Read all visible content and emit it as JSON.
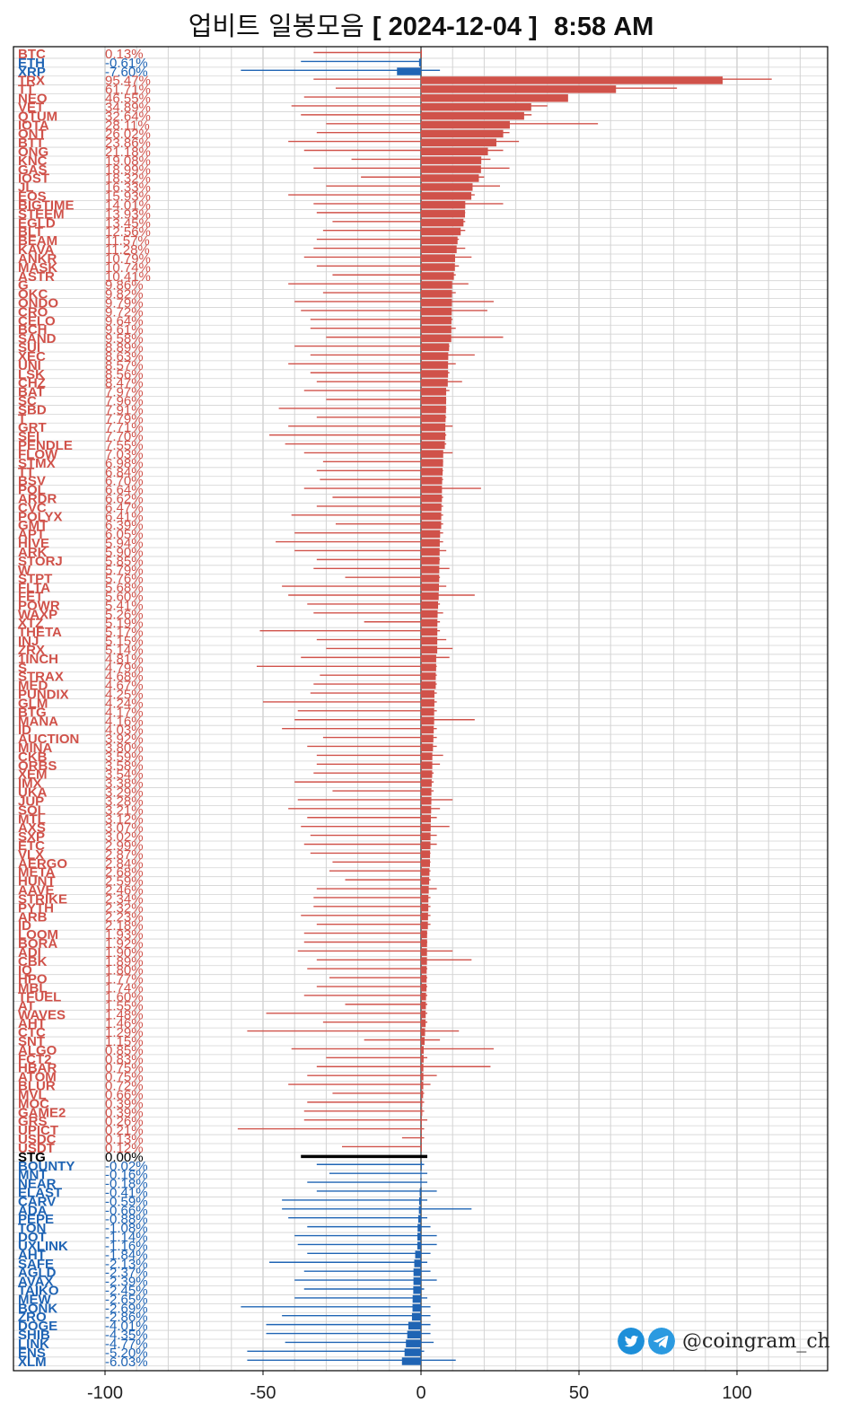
{
  "title": {
    "prefix": "업비트 일봉모음",
    "date": "[ 2024-12-04 ]",
    "time": "8:58 AM"
  },
  "brand": {
    "handle": "@coingram_ch",
    "icons": [
      "twitter-icon",
      "telegram-icon"
    ]
  },
  "colors": {
    "up": "#d0524a",
    "down": "#1f64b4",
    "flat": "#000000",
    "grid": "#d3d3d3",
    "axis": "#000000"
  },
  "chart_data": {
    "type": "bar",
    "orientation": "horizontal",
    "xlim": [
      -100,
      135
    ],
    "x_ticks": [
      -100,
      -50,
      0,
      50,
      100
    ],
    "grid": true,
    "body_label": "change %",
    "wick_label": "intraday low/high %",
    "rows": [
      {
        "s": "BTC",
        "v": "0.13%",
        "c": 0.13,
        "l": -34,
        "h": 0
      },
      {
        "s": "ETH",
        "v": "-0.61%",
        "c": -0.61,
        "l": -38,
        "h": 0
      },
      {
        "s": "XRP",
        "v": "-7.60%",
        "c": -7.6,
        "l": -57,
        "h": 6
      },
      {
        "s": "TRX",
        "v": "95.47%",
        "c": 95.47,
        "l": -34,
        "h": 111
      },
      {
        "s": "TT",
        "v": "61.71%",
        "c": 61.71,
        "l": -27,
        "h": 81
      },
      {
        "s": "NEO",
        "v": "46.55%",
        "c": 46.55,
        "l": -37,
        "h": 46
      },
      {
        "s": "VET",
        "v": "34.89%",
        "c": 34.89,
        "l": -41,
        "h": 40
      },
      {
        "s": "QTUM",
        "v": "32.64%",
        "c": 32.64,
        "l": -38,
        "h": 35
      },
      {
        "s": "IOTA",
        "v": "28.11%",
        "c": 28.11,
        "l": -30,
        "h": 56
      },
      {
        "s": "ONT",
        "v": "26.02%",
        "c": 26.02,
        "l": -33,
        "h": 28
      },
      {
        "s": "BTT",
        "v": "23.86%",
        "c": 23.86,
        "l": -42,
        "h": 31
      },
      {
        "s": "ONG",
        "v": "21.18%",
        "c": 21.18,
        "l": -37,
        "h": 26
      },
      {
        "s": "KNC",
        "v": "19.08%",
        "c": 19.08,
        "l": -22,
        "h": 22
      },
      {
        "s": "GAS",
        "v": "18.99%",
        "c": 18.99,
        "l": -34,
        "h": 28
      },
      {
        "s": "IOST",
        "v": "18.32%",
        "c": 18.32,
        "l": -19,
        "h": 20
      },
      {
        "s": "JL",
        "v": "16.33%",
        "c": 16.33,
        "l": -30,
        "h": 25
      },
      {
        "s": "EOS",
        "v": "15.93%",
        "c": 15.93,
        "l": -42,
        "h": 17
      },
      {
        "s": "BIGTIME",
        "v": "14.01%",
        "c": 14.01,
        "l": -34,
        "h": 26
      },
      {
        "s": "STEEM",
        "v": "13.93%",
        "c": 13.93,
        "l": -33,
        "h": 14
      },
      {
        "s": "EGLD",
        "v": "13.45%",
        "c": 13.45,
        "l": -28,
        "h": 14
      },
      {
        "s": "BLT",
        "v": "12.56%",
        "c": 12.56,
        "l": -31,
        "h": 14
      },
      {
        "s": "BEAM",
        "v": "11.57%",
        "c": 11.57,
        "l": -33,
        "h": 12
      },
      {
        "s": "KAVA",
        "v": "11.28%",
        "c": 11.28,
        "l": -34,
        "h": 14
      },
      {
        "s": "ANKR",
        "v": "10.79%",
        "c": 10.79,
        "l": -37,
        "h": 16
      },
      {
        "s": "MASK",
        "v": "10.74%",
        "c": 10.74,
        "l": -33,
        "h": 12
      },
      {
        "s": "ASTR",
        "v": "10.41%",
        "c": 10.41,
        "l": -28,
        "h": 11
      },
      {
        "s": "G",
        "v": "9.86%",
        "c": 9.86,
        "l": -42,
        "h": 15
      },
      {
        "s": "OKC",
        "v": "9.82%",
        "c": 9.82,
        "l": -31,
        "h": 11
      },
      {
        "s": "ONDO",
        "v": "9.79%",
        "c": 9.79,
        "l": -40,
        "h": 23
      },
      {
        "s": "CRO",
        "v": "9.72%",
        "c": 9.72,
        "l": -38,
        "h": 21
      },
      {
        "s": "CELO",
        "v": "9.64%",
        "c": 9.64,
        "l": -35,
        "h": 10
      },
      {
        "s": "BCH",
        "v": "9.61%",
        "c": 9.61,
        "l": -35,
        "h": 11
      },
      {
        "s": "SAND",
        "v": "9.58%",
        "c": 9.58,
        "l": -30,
        "h": 26
      },
      {
        "s": "SUI",
        "v": "8.89%",
        "c": 8.89,
        "l": -40,
        "h": 9
      },
      {
        "s": "XEC",
        "v": "8.63%",
        "c": 8.63,
        "l": -35,
        "h": 17
      },
      {
        "s": "UNI",
        "v": "8.57%",
        "c": 8.57,
        "l": -42,
        "h": 11
      },
      {
        "s": "LSK",
        "v": "8.56%",
        "c": 8.56,
        "l": -35,
        "h": 9
      },
      {
        "s": "CHZ",
        "v": "8.47%",
        "c": 8.47,
        "l": -33,
        "h": 13
      },
      {
        "s": "BAT",
        "v": "7.97%",
        "c": 7.97,
        "l": -37,
        "h": 9
      },
      {
        "s": "SC",
        "v": "7.96%",
        "c": 7.96,
        "l": -30,
        "h": 8
      },
      {
        "s": "SBD",
        "v": "7.91%",
        "c": 7.91,
        "l": -45,
        "h": 8
      },
      {
        "s": "T",
        "v": "7.79%",
        "c": 7.79,
        "l": -33,
        "h": 8
      },
      {
        "s": "GRT",
        "v": "7.71%",
        "c": 7.71,
        "l": -42,
        "h": 10
      },
      {
        "s": "SEI",
        "v": "7.70%",
        "c": 7.7,
        "l": -48,
        "h": 8
      },
      {
        "s": "PENDLE",
        "v": "7.55%",
        "c": 7.55,
        "l": -43,
        "h": 8
      },
      {
        "s": "FLOW",
        "v": "7.03%",
        "c": 7.03,
        "l": -37,
        "h": 10
      },
      {
        "s": "STMX",
        "v": "6.98%",
        "c": 6.98,
        "l": -31,
        "h": 7
      },
      {
        "s": "TT",
        "v": "6.84%",
        "c": 6.84,
        "l": -33,
        "h": 7
      },
      {
        "s": "BSV",
        "v": "6.70%",
        "c": 6.7,
        "l": -32,
        "h": 7
      },
      {
        "s": "POL",
        "v": "6.64%",
        "c": 6.64,
        "l": -37,
        "h": 19
      },
      {
        "s": "ARDR",
        "v": "6.62%",
        "c": 6.62,
        "l": -28,
        "h": 7
      },
      {
        "s": "CVC",
        "v": "6.47%",
        "c": 6.47,
        "l": -33,
        "h": 7
      },
      {
        "s": "POLYX",
        "v": "6.41%",
        "c": 6.41,
        "l": -41,
        "h": 7
      },
      {
        "s": "GMT",
        "v": "6.39%",
        "c": 6.39,
        "l": -27,
        "h": 7
      },
      {
        "s": "APT",
        "v": "6.05%",
        "c": 6.05,
        "l": -40,
        "h": 7
      },
      {
        "s": "HIVE",
        "v": "5.94%",
        "c": 5.94,
        "l": -46,
        "h": 7
      },
      {
        "s": "ARK",
        "v": "5.90%",
        "c": 5.9,
        "l": -40,
        "h": 8
      },
      {
        "s": "STORJ",
        "v": "5.85%",
        "c": 5.85,
        "l": -33,
        "h": 6
      },
      {
        "s": "W",
        "v": "5.79%",
        "c": 5.79,
        "l": -34,
        "h": 9
      },
      {
        "s": "STPT",
        "v": "5.76%",
        "c": 5.76,
        "l": -24,
        "h": 6
      },
      {
        "s": "FLTA",
        "v": "5.68%",
        "c": 5.68,
        "l": -44,
        "h": 8
      },
      {
        "s": "FET",
        "v": "5.60%",
        "c": 5.6,
        "l": -42,
        "h": 17
      },
      {
        "s": "POWR",
        "v": "5.41%",
        "c": 5.41,
        "l": -36,
        "h": 6
      },
      {
        "s": "WAXP",
        "v": "5.26%",
        "c": 5.26,
        "l": -34,
        "h": 7
      },
      {
        "s": "XTZ",
        "v": "5.19%",
        "c": 5.19,
        "l": -18,
        "h": 6
      },
      {
        "s": "THETA",
        "v": "5.17%",
        "c": 5.17,
        "l": -51,
        "h": 6
      },
      {
        "s": "INJ",
        "v": "5.15%",
        "c": 5.15,
        "l": -33,
        "h": 8
      },
      {
        "s": "ZRX",
        "v": "5.14%",
        "c": 5.14,
        "l": -30,
        "h": 10
      },
      {
        "s": "1INCH",
        "v": "4.81%",
        "c": 4.81,
        "l": -38,
        "h": 9
      },
      {
        "s": "S",
        "v": "4.79%",
        "c": 4.79,
        "l": -52,
        "h": 5
      },
      {
        "s": "STRAX",
        "v": "4.68%",
        "c": 4.68,
        "l": -32,
        "h": 5
      },
      {
        "s": "MED",
        "v": "4.67%",
        "c": 4.67,
        "l": -34,
        "h": 5
      },
      {
        "s": "PUNDIX",
        "v": "4.25%",
        "c": 4.25,
        "l": -35,
        "h": 5
      },
      {
        "s": "GLM",
        "v": "4.24%",
        "c": 4.24,
        "l": -50,
        "h": 5
      },
      {
        "s": "BTG",
        "v": "4.17%",
        "c": 4.17,
        "l": -39,
        "h": 5
      },
      {
        "s": "MANA",
        "v": "4.16%",
        "c": 4.16,
        "l": -40,
        "h": 17
      },
      {
        "s": "ID",
        "v": "4.03%",
        "c": 4.03,
        "l": -44,
        "h": 5
      },
      {
        "s": "AUCTION",
        "v": "3.92%",
        "c": 3.92,
        "l": -31,
        "h": 5
      },
      {
        "s": "MINA",
        "v": "3.80%",
        "c": 3.8,
        "l": -36,
        "h": 5
      },
      {
        "s": "CKB",
        "v": "3.59%",
        "c": 3.59,
        "l": -33,
        "h": 7
      },
      {
        "s": "ORBS",
        "v": "3.58%",
        "c": 3.58,
        "l": -33,
        "h": 6
      },
      {
        "s": "XEM",
        "v": "3.54%",
        "c": 3.54,
        "l": -34,
        "h": 4
      },
      {
        "s": "IMX",
        "v": "3.38%",
        "c": 3.38,
        "l": -40,
        "h": 4
      },
      {
        "s": "UKA",
        "v": "3.29%",
        "c": 3.29,
        "l": -28,
        "h": 4
      },
      {
        "s": "JUP",
        "v": "3.28%",
        "c": 3.28,
        "l": -39,
        "h": 10
      },
      {
        "s": "SOL",
        "v": "3.21%",
        "c": 3.21,
        "l": -42,
        "h": 6
      },
      {
        "s": "MTL",
        "v": "3.12%",
        "c": 3.12,
        "l": -36,
        "h": 5
      },
      {
        "s": "AXS",
        "v": "3.07%",
        "c": 3.07,
        "l": -38,
        "h": 9
      },
      {
        "s": "SXP",
        "v": "3.02%",
        "c": 3.02,
        "l": -35,
        "h": 5
      },
      {
        "s": "ETC",
        "v": "2.99%",
        "c": 2.99,
        "l": -37,
        "h": 5
      },
      {
        "s": "VLX",
        "v": "2.87%",
        "c": 2.87,
        "l": -35,
        "h": 3
      },
      {
        "s": "AERGO",
        "v": "2.84%",
        "c": 2.84,
        "l": -28,
        "h": 3
      },
      {
        "s": "META",
        "v": "2.68%",
        "c": 2.68,
        "l": -29,
        "h": 3
      },
      {
        "s": "HUNT",
        "v": "2.59%",
        "c": 2.59,
        "l": -24,
        "h": 3
      },
      {
        "s": "AAVE",
        "v": "2.46%",
        "c": 2.46,
        "l": -33,
        "h": 5
      },
      {
        "s": "STRIKE",
        "v": "2.34%",
        "c": 2.34,
        "l": -34,
        "h": 3
      },
      {
        "s": "PYTH",
        "v": "2.32%",
        "c": 2.32,
        "l": -34,
        "h": 3
      },
      {
        "s": "ARB",
        "v": "2.23%",
        "c": 2.23,
        "l": -38,
        "h": 3
      },
      {
        "s": "ID",
        "v": "2.18%",
        "c": 2.18,
        "l": -33,
        "h": 3
      },
      {
        "s": "LOOM",
        "v": "1.93%",
        "c": 1.93,
        "l": -37,
        "h": 2
      },
      {
        "s": "BORA",
        "v": "1.92%",
        "c": 1.92,
        "l": -37,
        "h": 2
      },
      {
        "s": "ADI",
        "v": "1.90%",
        "c": 1.9,
        "l": -39,
        "h": 10
      },
      {
        "s": "CBK",
        "v": "1.89%",
        "c": 1.89,
        "l": -33,
        "h": 16
      },
      {
        "s": "IQ",
        "v": "1.80%",
        "c": 1.8,
        "l": -36,
        "h": 2
      },
      {
        "s": "HPO",
        "v": "1.77%",
        "c": 1.77,
        "l": -29,
        "h": 2
      },
      {
        "s": "MBL",
        "v": "1.74%",
        "c": 1.74,
        "l": -33,
        "h": 2
      },
      {
        "s": "TFUEL",
        "v": "1.60%",
        "c": 1.6,
        "l": -37,
        "h": 2
      },
      {
        "s": "AT",
        "v": "1.55%",
        "c": 1.55,
        "l": -24,
        "h": 2
      },
      {
        "s": "WAVES",
        "v": "1.48%",
        "c": 1.48,
        "l": -49,
        "h": 2
      },
      {
        "s": "AHT",
        "v": "1.46%",
        "c": 1.46,
        "l": -31,
        "h": 2
      },
      {
        "s": "CTC",
        "v": "1.29%",
        "c": 1.29,
        "l": -55,
        "h": 12
      },
      {
        "s": "SNT",
        "v": "1.15%",
        "c": 1.15,
        "l": -18,
        "h": 6
      },
      {
        "s": "ALGO",
        "v": "0.85%",
        "c": 0.85,
        "l": -41,
        "h": 23
      },
      {
        "s": "FCT2",
        "v": "0.83%",
        "c": 0.83,
        "l": -30,
        "h": 2
      },
      {
        "s": "HBAR",
        "v": "0.75%",
        "c": 0.75,
        "l": -33,
        "h": 22
      },
      {
        "s": "ATOM",
        "v": "0.75%",
        "c": 0.75,
        "l": -36,
        "h": 5
      },
      {
        "s": "BLUR",
        "v": "0.72%",
        "c": 0.72,
        "l": -42,
        "h": 3
      },
      {
        "s": "MVL",
        "v": "0.66%",
        "c": 0.66,
        "l": -28,
        "h": 1
      },
      {
        "s": "MOC",
        "v": "0.39%",
        "c": 0.39,
        "l": -36,
        "h": 1
      },
      {
        "s": "GAME2",
        "v": "0.39%",
        "c": 0.39,
        "l": -37,
        "h": 1
      },
      {
        "s": "GRS",
        "v": "0.26%",
        "c": 0.26,
        "l": -37,
        "h": 2
      },
      {
        "s": "UPICT",
        "v": "0.21%",
        "c": 0.21,
        "l": -58,
        "h": 1
      },
      {
        "s": "USDC",
        "v": "0.13%",
        "c": 0.13,
        "l": -6,
        "h": 1
      },
      {
        "s": "USDT",
        "v": "0.12%",
        "c": 0.12,
        "l": -25,
        "h": 0
      },
      {
        "s": "STG",
        "v": "0.00%",
        "c": 0.0,
        "l": -38,
        "h": 2
      },
      {
        "s": "BOUNTY",
        "v": "-0.02%",
        "c": -0.02,
        "l": -33,
        "h": 1
      },
      {
        "s": "MNT",
        "v": "-0.16%",
        "c": -0.16,
        "l": -29,
        "h": 2
      },
      {
        "s": "NEAR",
        "v": "-0.18%",
        "c": -0.18,
        "l": -36,
        "h": 2
      },
      {
        "s": "ELAST",
        "v": "-0.41%",
        "c": -0.41,
        "l": -33,
        "h": 5
      },
      {
        "s": "CARV",
        "v": "-0.59%",
        "c": -0.59,
        "l": -44,
        "h": 2
      },
      {
        "s": "ADA",
        "v": "-0.66%",
        "c": -0.66,
        "l": -44,
        "h": 16
      },
      {
        "s": "PEPE",
        "v": "-0.88%",
        "c": -0.88,
        "l": -42,
        "h": 2
      },
      {
        "s": "TON",
        "v": "-1.08%",
        "c": -1.08,
        "l": -36,
        "h": 3
      },
      {
        "s": "DOT",
        "v": "-1.14%",
        "c": -1.14,
        "l": -40,
        "h": 5
      },
      {
        "s": "UXLINK",
        "v": "-1.16%",
        "c": -1.16,
        "l": -39,
        "h": 5
      },
      {
        "s": "AHT",
        "v": "-1.84%",
        "c": -1.84,
        "l": -36,
        "h": 3
      },
      {
        "s": "SAFE",
        "v": "-2.13%",
        "c": -2.13,
        "l": -48,
        "h": 2
      },
      {
        "s": "AGLD",
        "v": "-2.37%",
        "c": -2.37,
        "l": -37,
        "h": 3
      },
      {
        "s": "AVAX",
        "v": "-2.39%",
        "c": -2.39,
        "l": -40,
        "h": 5
      },
      {
        "s": "TAIKO",
        "v": "-2.45%",
        "c": -2.45,
        "l": -37,
        "h": 1
      },
      {
        "s": "MEW",
        "v": "-2.65%",
        "c": -2.65,
        "l": -40,
        "h": 2
      },
      {
        "s": "BONK",
        "v": "-2.69%",
        "c": -2.69,
        "l": -57,
        "h": 3
      },
      {
        "s": "ZRO",
        "v": "-2.86%",
        "c": -2.86,
        "l": -44,
        "h": 3
      },
      {
        "s": "DOGE",
        "v": "-4.01%",
        "c": -4.01,
        "l": -49,
        "h": 3
      },
      {
        "s": "SHIB",
        "v": "-4.35%",
        "c": -4.35,
        "l": -49,
        "h": 3
      },
      {
        "s": "LINK",
        "v": "-4.77%",
        "c": -4.77,
        "l": -43,
        "h": 4
      },
      {
        "s": "ENS",
        "v": "-5.20%",
        "c": -5.2,
        "l": -55,
        "h": 1
      },
      {
        "s": "XLM",
        "v": "-6.03%",
        "c": -6.03,
        "l": -55,
        "h": 11
      }
    ]
  }
}
